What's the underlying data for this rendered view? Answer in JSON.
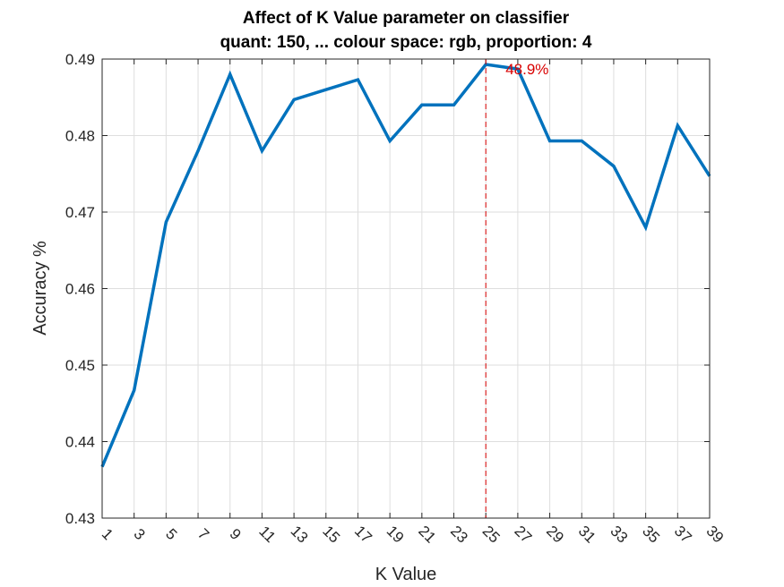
{
  "chart_data": {
    "type": "line",
    "title": "Affect of K Value parameter on classifier",
    "subtitle": "quant: 150, ... colour space: rgb, proportion: 4",
    "xlabel": "K Value",
    "ylabel": "Accuracy %",
    "xlim": [
      1,
      39
    ],
    "ylim": [
      0.43,
      0.49
    ],
    "grid": true,
    "xticks": [
      1,
      3,
      5,
      7,
      9,
      11,
      13,
      15,
      17,
      19,
      21,
      23,
      25,
      27,
      29,
      31,
      33,
      35,
      37,
      39
    ],
    "yticks": [
      0.43,
      0.44,
      0.45,
      0.46,
      0.47,
      0.48,
      0.49
    ],
    "ytick_labels": [
      "0.43",
      "0.44",
      "0.45",
      "0.46",
      "0.47",
      "0.48",
      "0.49"
    ],
    "x": [
      1,
      3,
      5,
      7,
      9,
      11,
      13,
      15,
      17,
      19,
      21,
      23,
      25,
      27,
      29,
      31,
      33,
      35,
      37,
      39
    ],
    "series": [
      {
        "values": [
          0.4367,
          0.4467,
          0.4687,
          0.478,
          0.488,
          0.478,
          0.4847,
          0.486,
          0.4873,
          0.4793,
          0.484,
          0.484,
          0.4893,
          0.4887,
          0.4793,
          0.4793,
          0.476,
          0.468,
          0.4813,
          0.4747
        ],
        "color": "#0072BD"
      }
    ],
    "annotation": {
      "x": 25,
      "y": 0.4893,
      "text": "48.9%",
      "color": "#D90000"
    }
  }
}
